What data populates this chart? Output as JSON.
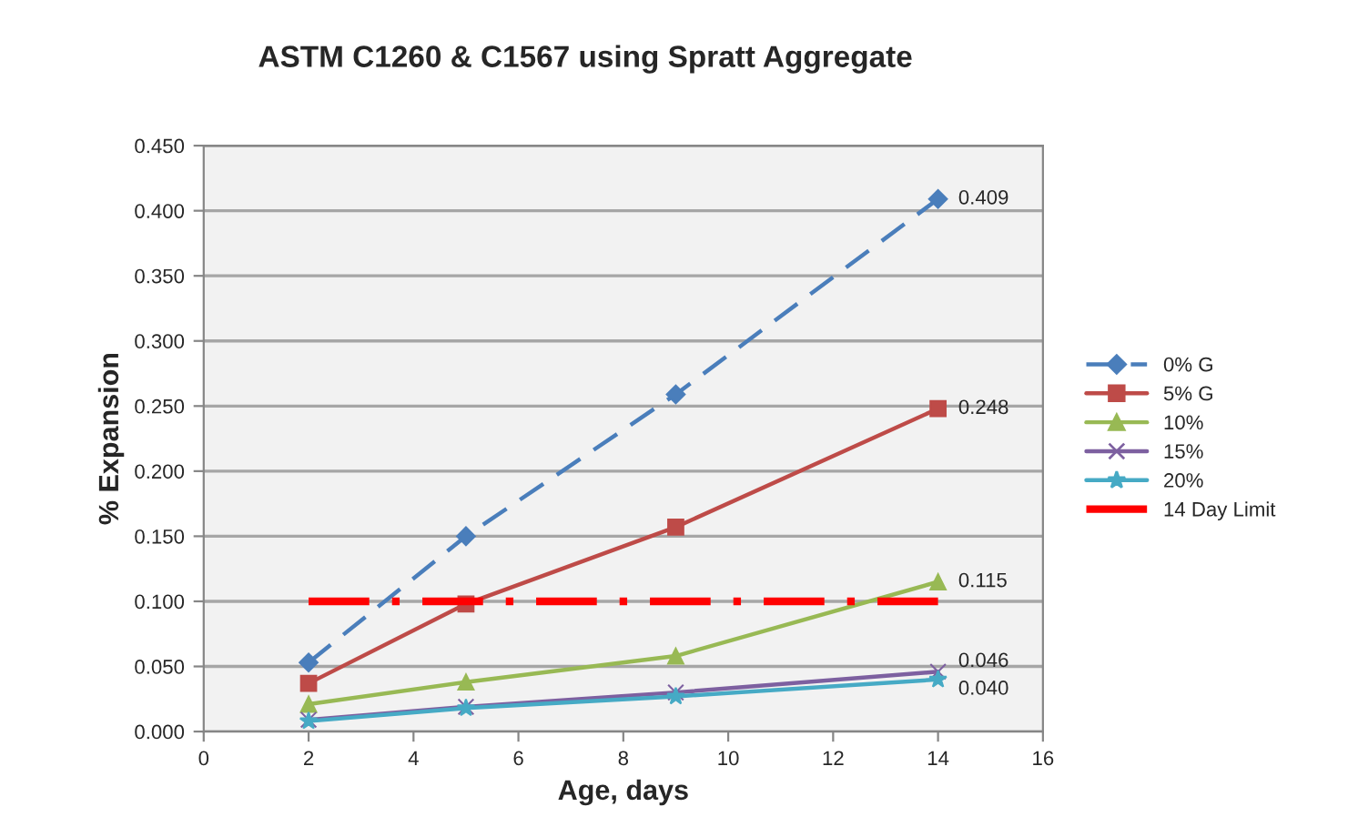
{
  "chart_data": {
    "type": "line",
    "title": "ASTM C1260 & C1567 using Spratt Aggregate",
    "xlabel": "Age, days",
    "ylabel": "% Expansion",
    "x": [
      2,
      5,
      9,
      14
    ],
    "series": [
      {
        "name": "0% G",
        "color": "#4a7ebb",
        "values": [
          0.053,
          0.15,
          0.259,
          0.409
        ],
        "marker": "diamond",
        "line_style": "dashed",
        "value_labels": [
          null,
          null,
          null,
          "0.409"
        ]
      },
      {
        "name": "5% G",
        "color": "#be4b48",
        "values": [
          0.037,
          0.098,
          0.157,
          0.248
        ],
        "marker": "square",
        "line_style": "solid",
        "value_labels": [
          null,
          null,
          null,
          "0.248"
        ]
      },
      {
        "name": "10%",
        "color": "#98b954",
        "values": [
          0.021,
          0.038,
          0.058,
          0.115
        ],
        "marker": "triangle",
        "line_style": "solid",
        "value_labels": [
          null,
          null,
          null,
          "0.115"
        ]
      },
      {
        "name": "15%",
        "color": "#7d60a0",
        "values": [
          0.009,
          0.019,
          0.03,
          0.046
        ],
        "marker": "cross",
        "line_style": "solid",
        "value_labels": [
          null,
          null,
          null,
          "0.046"
        ]
      },
      {
        "name": "20%",
        "color": "#46aac5",
        "values": [
          0.008,
          0.018,
          0.027,
          0.04
        ],
        "marker": "star",
        "line_style": "solid",
        "value_labels": [
          null,
          null,
          null,
          "0.040"
        ]
      },
      {
        "name": "14 Day Limit",
        "color": "#ff0000",
        "x": [
          2,
          14
        ],
        "values": [
          0.1,
          0.1
        ],
        "marker": "none",
        "line_style": "dashdot"
      }
    ],
    "xlim": [
      0,
      16
    ],
    "xticks": [
      0,
      2,
      4,
      6,
      8,
      10,
      12,
      14,
      16
    ],
    "ylim": [
      0,
      0.45
    ],
    "yticks": [
      {
        "value": 0,
        "label": "0.000"
      },
      {
        "value": 0.05,
        "label": "0.050"
      },
      {
        "value": 0.1,
        "label": "0.100"
      },
      {
        "value": 0.15,
        "label": "0.150"
      },
      {
        "value": 0.2,
        "label": "0.200"
      },
      {
        "value": 0.25,
        "label": "0.250"
      },
      {
        "value": 0.3,
        "label": "0.300"
      },
      {
        "value": 0.35,
        "label": "0.350"
      },
      {
        "value": 0.4,
        "label": "0.400"
      },
      {
        "value": 0.45,
        "label": "0.450"
      }
    ],
    "grid": "y",
    "legend": "right"
  }
}
